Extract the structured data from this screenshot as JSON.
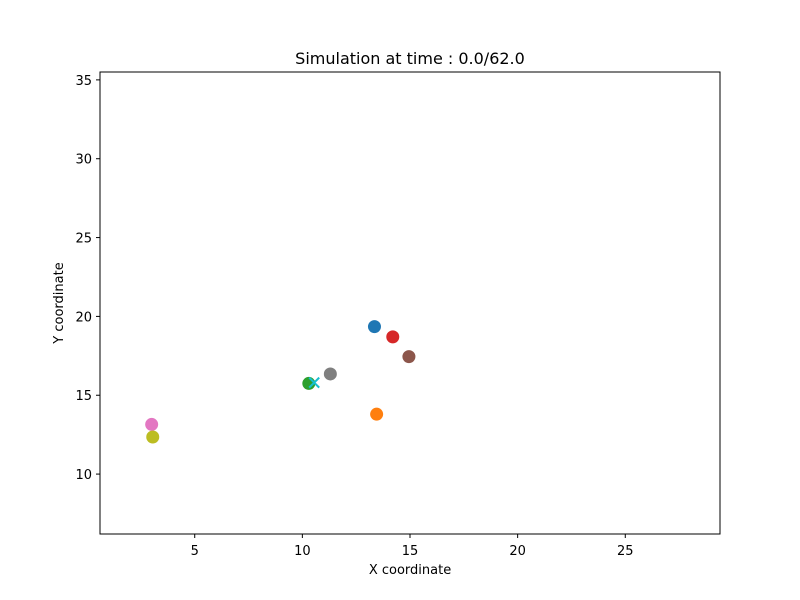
{
  "chart_data": {
    "type": "scatter",
    "title": "Simulation at time : 0.0/62.0",
    "xlabel": "X coordinate",
    "ylabel": "Y coordinate",
    "xlim": [
      0.6,
      29.4
    ],
    "ylim": [
      6.2,
      35.5
    ],
    "xticks": [
      5,
      10,
      15,
      20,
      25
    ],
    "yticks": [
      10,
      15,
      20,
      25,
      30,
      35
    ],
    "grid": false,
    "points": [
      {
        "x": 13.35,
        "y": 19.35,
        "color": "#1f77b4",
        "marker": "circle"
      },
      {
        "x": 13.45,
        "y": 13.8,
        "color": "#ff7f0e",
        "marker": "circle"
      },
      {
        "x": 10.3,
        "y": 15.75,
        "color": "#2ca02c",
        "marker": "circle"
      },
      {
        "x": 14.2,
        "y": 18.7,
        "color": "#d62728",
        "marker": "circle"
      },
      {
        "x": 14.95,
        "y": 17.45,
        "color": "#8c564b",
        "marker": "circle"
      },
      {
        "x": 3.0,
        "y": 13.15,
        "color": "#e377c2",
        "marker": "circle"
      },
      {
        "x": 11.3,
        "y": 16.35,
        "color": "#7f7f7f",
        "marker": "circle"
      },
      {
        "x": 3.05,
        "y": 12.35,
        "color": "#bcbd22",
        "marker": "circle"
      },
      {
        "x": 10.55,
        "y": 15.8,
        "color": "#17becf",
        "marker": "x"
      }
    ]
  }
}
